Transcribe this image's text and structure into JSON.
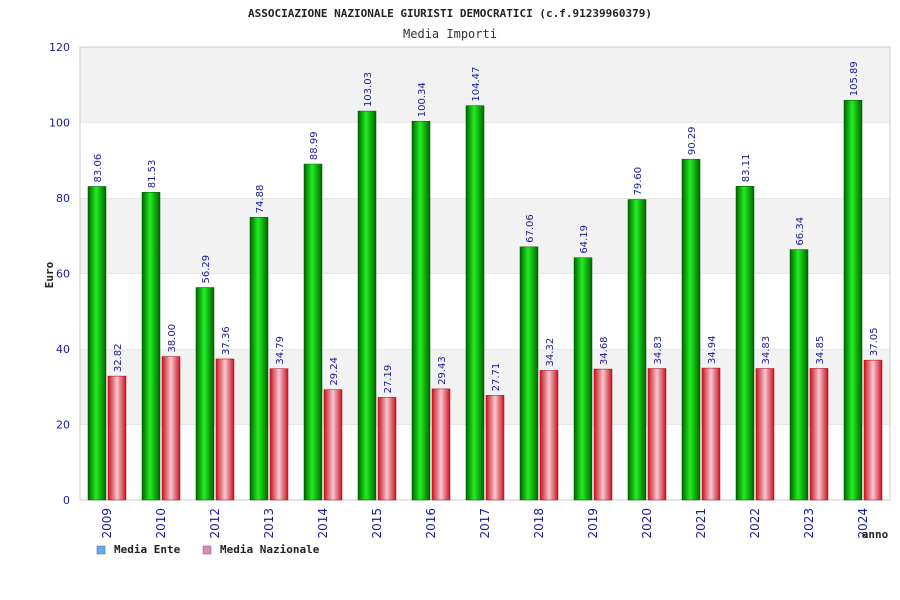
{
  "chart_data": {
    "type": "bar",
    "title": "ASSOCIAZIONE NAZIONALE GIURISTI DEMOCRATICI (c.f.91239960379)",
    "subtitle": "Media Importi",
    "ylabel": "Euro",
    "xlabel": "anno",
    "ylim": [
      0,
      120
    ],
    "yticks": [
      0,
      20,
      40,
      60,
      80,
      100,
      120
    ],
    "grid": "horizontal bands",
    "legend_position": "bottom-left",
    "categories": [
      "2009",
      "2010",
      "2012",
      "2013",
      "2014",
      "2015",
      "2016",
      "2017",
      "2018",
      "2019",
      "2020",
      "2021",
      "2022",
      "2023",
      "2024"
    ],
    "series": [
      {
        "name": "Media Ente",
        "legend_color": "#66aaee",
        "bar_color": "#00aa00",
        "values": [
          83.06,
          81.53,
          56.29,
          74.88,
          88.99,
          103.03,
          100.34,
          104.47,
          67.06,
          64.19,
          79.6,
          90.29,
          83.11,
          66.34,
          105.89
        ],
        "labels": [
          "83.06",
          "81.53",
          "56.29",
          "74.88",
          "88.99",
          "103.03",
          "100.34",
          "104.47",
          "67.06",
          "64.19",
          "79.60",
          "90.29",
          "83.11",
          "66.34",
          "105.89"
        ]
      },
      {
        "name": "Media Nazionale",
        "legend_color": "#dd88bb",
        "bar_color": "#dd2233",
        "values": [
          32.82,
          38.0,
          37.36,
          34.79,
          29.24,
          27.19,
          29.43,
          27.71,
          34.32,
          34.68,
          34.83,
          34.94,
          34.83,
          34.85,
          37.05
        ],
        "labels": [
          "32.82",
          "38.00",
          "37.36",
          "34.79",
          "29.24",
          "27.19",
          "29.43",
          "27.71",
          "34.32",
          "34.68",
          "34.83",
          "34.94",
          "34.83",
          "34.85",
          "37.05"
        ]
      }
    ]
  }
}
